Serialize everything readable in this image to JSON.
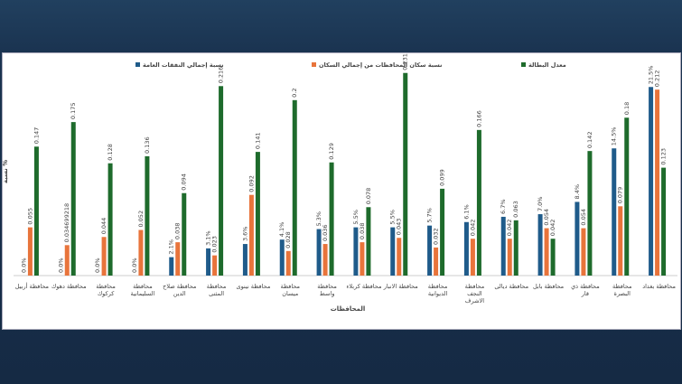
{
  "chart_data": {
    "type": "bar",
    "x_label": "المحافظات",
    "y_label": "نسبة %",
    "categories": [
      "محافظة أربيل",
      "محافظة دهوك",
      "محافظة كركوك",
      "محافظة السليمانية",
      "محافظة صلاح الدين",
      "محافظة المثنى",
      "محافظة نينوى",
      "محافظة ميسان",
      "محافظة واسط",
      "محافظة كربلاء",
      "محافظة الانبار",
      "محافظة الديوانية",
      "محافظة النجف الاشرف",
      "محافظة ديالى",
      "محافظة بابل",
      "محافظة ذي قار",
      "محافظة البصرة",
      "محافظة بغداد"
    ],
    "series": [
      {
        "name": "نسبة إجمالي النفقات العامة",
        "color": "#1f5b8a",
        "values": [
          0,
          0,
          0,
          0,
          0.021,
          0.031,
          0.036,
          0.041,
          0.053,
          0.055,
          0.055,
          0.057,
          0.061,
          0.067,
          0.07,
          0.084,
          0.145,
          0.215
        ],
        "value_labels": [
          "0.0%",
          "0.0%",
          "0.0%",
          "0.0%",
          "2.1%",
          "3.1%",
          "3.6%",
          "4.1%",
          "5.3%",
          "5.5%",
          "5.5%",
          "5.7%",
          "6.1%",
          "6.7%",
          "7.0%",
          "8.4%",
          "14.5%",
          "21.5%"
        ]
      },
      {
        "name": "نسبة سكان المحافظات من إجمالي السكان",
        "color": "#e8743b",
        "values": [
          0.055,
          0.034699218,
          0.044,
          0.052,
          0.038,
          0.023,
          0.092,
          0.028,
          0.036,
          0.038,
          0.043,
          0.032,
          0.042,
          0.042,
          0.054,
          0.054,
          0.079,
          0.212
        ]
      },
      {
        "name": "معدل البطالة",
        "color": "#1e6b2c",
        "values": [
          0.147,
          0.175,
          0.128,
          0.136,
          0.094,
          0.216,
          0.141,
          0.2,
          0.129,
          0.078,
          0.231,
          0.099,
          0.166,
          0.063,
          0.042,
          0.142,
          0.18,
          0.123
        ]
      }
    ],
    "ylim": [
      0,
      0.24
    ]
  }
}
